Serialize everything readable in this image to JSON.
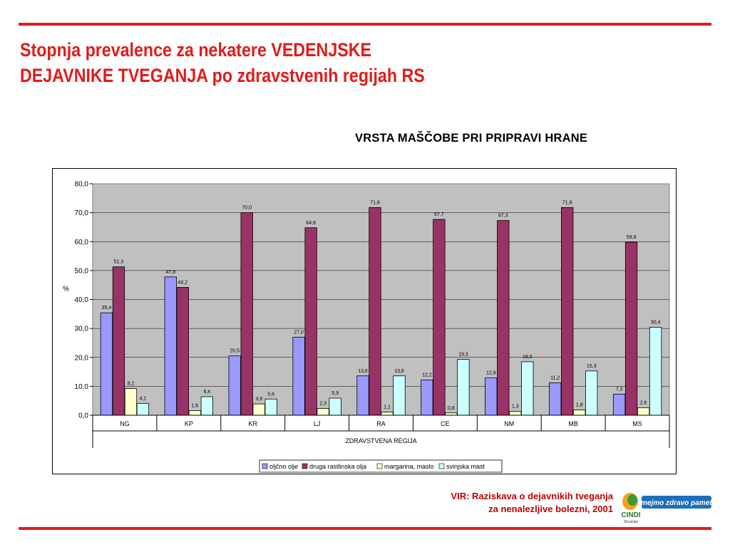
{
  "slide": {
    "title_line1": "Stopnja prevalence za nekatere VEDENJSKE",
    "title_line2": "DEJAVNIKE TVEGANJA po zdravstvenih regijah RS",
    "subtitle": "VRSTA MAŠČOBE PRI PRIPRAVI HRANE",
    "source_line1": "VIR: Raziskava o dejavnikih tveganja",
    "source_line2": "za nenalezljive bolezni, 2001",
    "logo_slogan": "Imejmo zdravo pamet!",
    "logo_name": "CINDI",
    "logo_country": "Slovenija",
    "accent_color": "#e11b1b"
  },
  "chart_data": {
    "type": "bar",
    "title": "VRSTA MAŠČOBE PRI PRIPRAVI HRANE",
    "xlabel": "ZDRAVSTVENA REGIJA",
    "ylabel": "%",
    "ylim": [
      0,
      80
    ],
    "yticks": [
      "0,0",
      "10,0",
      "20,0",
      "30,0",
      "40,0",
      "50,0",
      "60,0",
      "70,0",
      "80,0"
    ],
    "grid": true,
    "legend_position": "bottom",
    "plot_background": "#c0c0c0",
    "categories": [
      "NG",
      "KP",
      "KR",
      "LJ",
      "RA",
      "CE",
      "NM",
      "MB",
      "MS"
    ],
    "series": [
      {
        "name": "oljčno olje",
        "color": "#9999ff",
        "values": [
          35.4,
          47.8,
          20.5,
          27.0,
          13.6,
          12.2,
          12.9,
          11.2,
          7.3
        ],
        "labels": [
          "35,4",
          "47,8",
          "20,5",
          "27,0",
          "13,6",
          "12,2",
          "12,9",
          "11,2",
          "7,3"
        ]
      },
      {
        "name": "druga rastlinska olja",
        "color": "#993366",
        "values": [
          51.3,
          44.2,
          70.0,
          64.8,
          71.8,
          67.7,
          67.3,
          71.8,
          59.8
        ],
        "labels": [
          "51,3",
          "44,2",
          "70,0",
          "64,8",
          "71,8",
          "67,7",
          "67,3",
          "71,8",
          "59,8"
        ]
      },
      {
        "name": "margarina, maslo",
        "color": "#ffffcc",
        "values": [
          9.2,
          1.6,
          3.9,
          2.3,
          1.1,
          0.8,
          1.3,
          1.8,
          2.6
        ],
        "labels": [
          "9,2",
          "1,6",
          "3,9",
          "2,3",
          "1,1",
          "0,8",
          "1,3",
          "1,8",
          "2,6"
        ]
      },
      {
        "name": "svinjska mast",
        "color": "#ccffff",
        "values": [
          4.1,
          6.4,
          5.6,
          5.9,
          13.6,
          19.3,
          18.5,
          15.3,
          30.4
        ],
        "labels": [
          "4,1",
          "6,4",
          "5,6",
          "5,9",
          "13,6",
          "19,3",
          "18,5",
          "15,3",
          "30,4"
        ]
      }
    ]
  }
}
